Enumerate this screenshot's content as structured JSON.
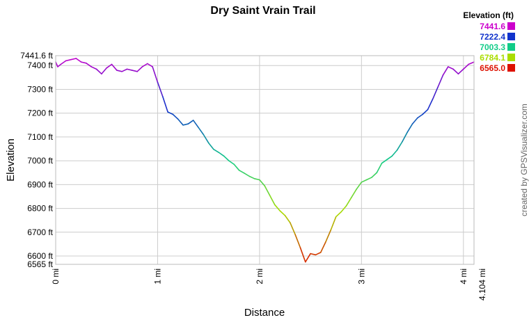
{
  "chart_data": {
    "type": "line",
    "title": "Dry Saint Vrain Trail",
    "xlabel": "Distance",
    "ylabel": "Elevation",
    "xlim": [
      0,
      4.104
    ],
    "ylim": [
      6565.0,
      7441.6
    ],
    "x_ticks": [
      {
        "value": 0,
        "label": "0 mi"
      },
      {
        "value": 1,
        "label": "1 mi"
      },
      {
        "value": 2,
        "label": "2 mi"
      },
      {
        "value": 3,
        "label": "3 mi"
      },
      {
        "value": 4,
        "label": "4 mi"
      },
      {
        "value": 4.104,
        "label": "4.104 mi"
      }
    ],
    "y_ticks": [
      {
        "value": 7441.6,
        "label": "7441.6 ft"
      },
      {
        "value": 7400,
        "label": "7400 ft"
      },
      {
        "value": 7300,
        "label": "7300 ft"
      },
      {
        "value": 7200,
        "label": "7200 ft"
      },
      {
        "value": 7100,
        "label": "7100 ft"
      },
      {
        "value": 7000,
        "label": "7000 ft"
      },
      {
        "value": 6900,
        "label": "6900 ft"
      },
      {
        "value": 6800,
        "label": "6800 ft"
      },
      {
        "value": 6700,
        "label": "6700 ft"
      },
      {
        "value": 6600,
        "label": "6600 ft"
      },
      {
        "value": 6565,
        "label": "6565 ft"
      }
    ],
    "grid": true,
    "legend": {
      "title": "Elevation (ft)",
      "position": "top-right",
      "entries": [
        {
          "label": "7441.6",
          "color": "#cc00cc"
        },
        {
          "label": "7222.4",
          "color": "#1133cc"
        },
        {
          "label": "7003.3",
          "color": "#11cc88"
        },
        {
          "label": "6784.1",
          "color": "#aadd00"
        },
        {
          "label": "6565.0",
          "color": "#dd1100"
        }
      ]
    },
    "credit": "created by GPSVisualizer.com",
    "series": [
      {
        "x": [
          0,
          0.02,
          0.05,
          0.1,
          0.15,
          0.2,
          0.25,
          0.3,
          0.35,
          0.4,
          0.45,
          0.5,
          0.55,
          0.6,
          0.65,
          0.7,
          0.75,
          0.8,
          0.85,
          0.9,
          0.95,
          1.0,
          1.05,
          1.1,
          1.15,
          1.2,
          1.25,
          1.3,
          1.35,
          1.4,
          1.45,
          1.5,
          1.55,
          1.6,
          1.65,
          1.7,
          1.75,
          1.8,
          1.85,
          1.9,
          1.95,
          2.0,
          2.05,
          2.1,
          2.15,
          2.2,
          2.25,
          2.3,
          2.35,
          2.4,
          2.45,
          2.5,
          2.55,
          2.6,
          2.65,
          2.7,
          2.75,
          2.8,
          2.85,
          2.9,
          2.95,
          3.0,
          3.05,
          3.1,
          3.15,
          3.2,
          3.25,
          3.3,
          3.35,
          3.4,
          3.45,
          3.5,
          3.55,
          3.6,
          3.65,
          3.7,
          3.75,
          3.8,
          3.85,
          3.9,
          3.95,
          4.0,
          4.05,
          4.104
        ],
        "y": [
          7415,
          7395,
          7405,
          7420,
          7425,
          7430,
          7415,
          7410,
          7395,
          7385,
          7365,
          7390,
          7405,
          7380,
          7375,
          7385,
          7380,
          7375,
          7395,
          7408,
          7395,
          7330,
          7270,
          7205,
          7195,
          7175,
          7150,
          7155,
          7170,
          7140,
          7110,
          7075,
          7048,
          7035,
          7020,
          7000,
          6985,
          6960,
          6948,
          6935,
          6925,
          6920,
          6895,
          6855,
          6815,
          6790,
          6770,
          6740,
          6690,
          6635,
          6575,
          6610,
          6605,
          6615,
          6660,
          6710,
          6765,
          6785,
          6810,
          6845,
          6880,
          6910,
          6920,
          6930,
          6950,
          6990,
          7005,
          7020,
          7045,
          7080,
          7120,
          7155,
          7180,
          7195,
          7215,
          7260,
          7310,
          7360,
          7395,
          7385,
          7365,
          7385,
          7405,
          7415
        ]
      }
    ]
  }
}
